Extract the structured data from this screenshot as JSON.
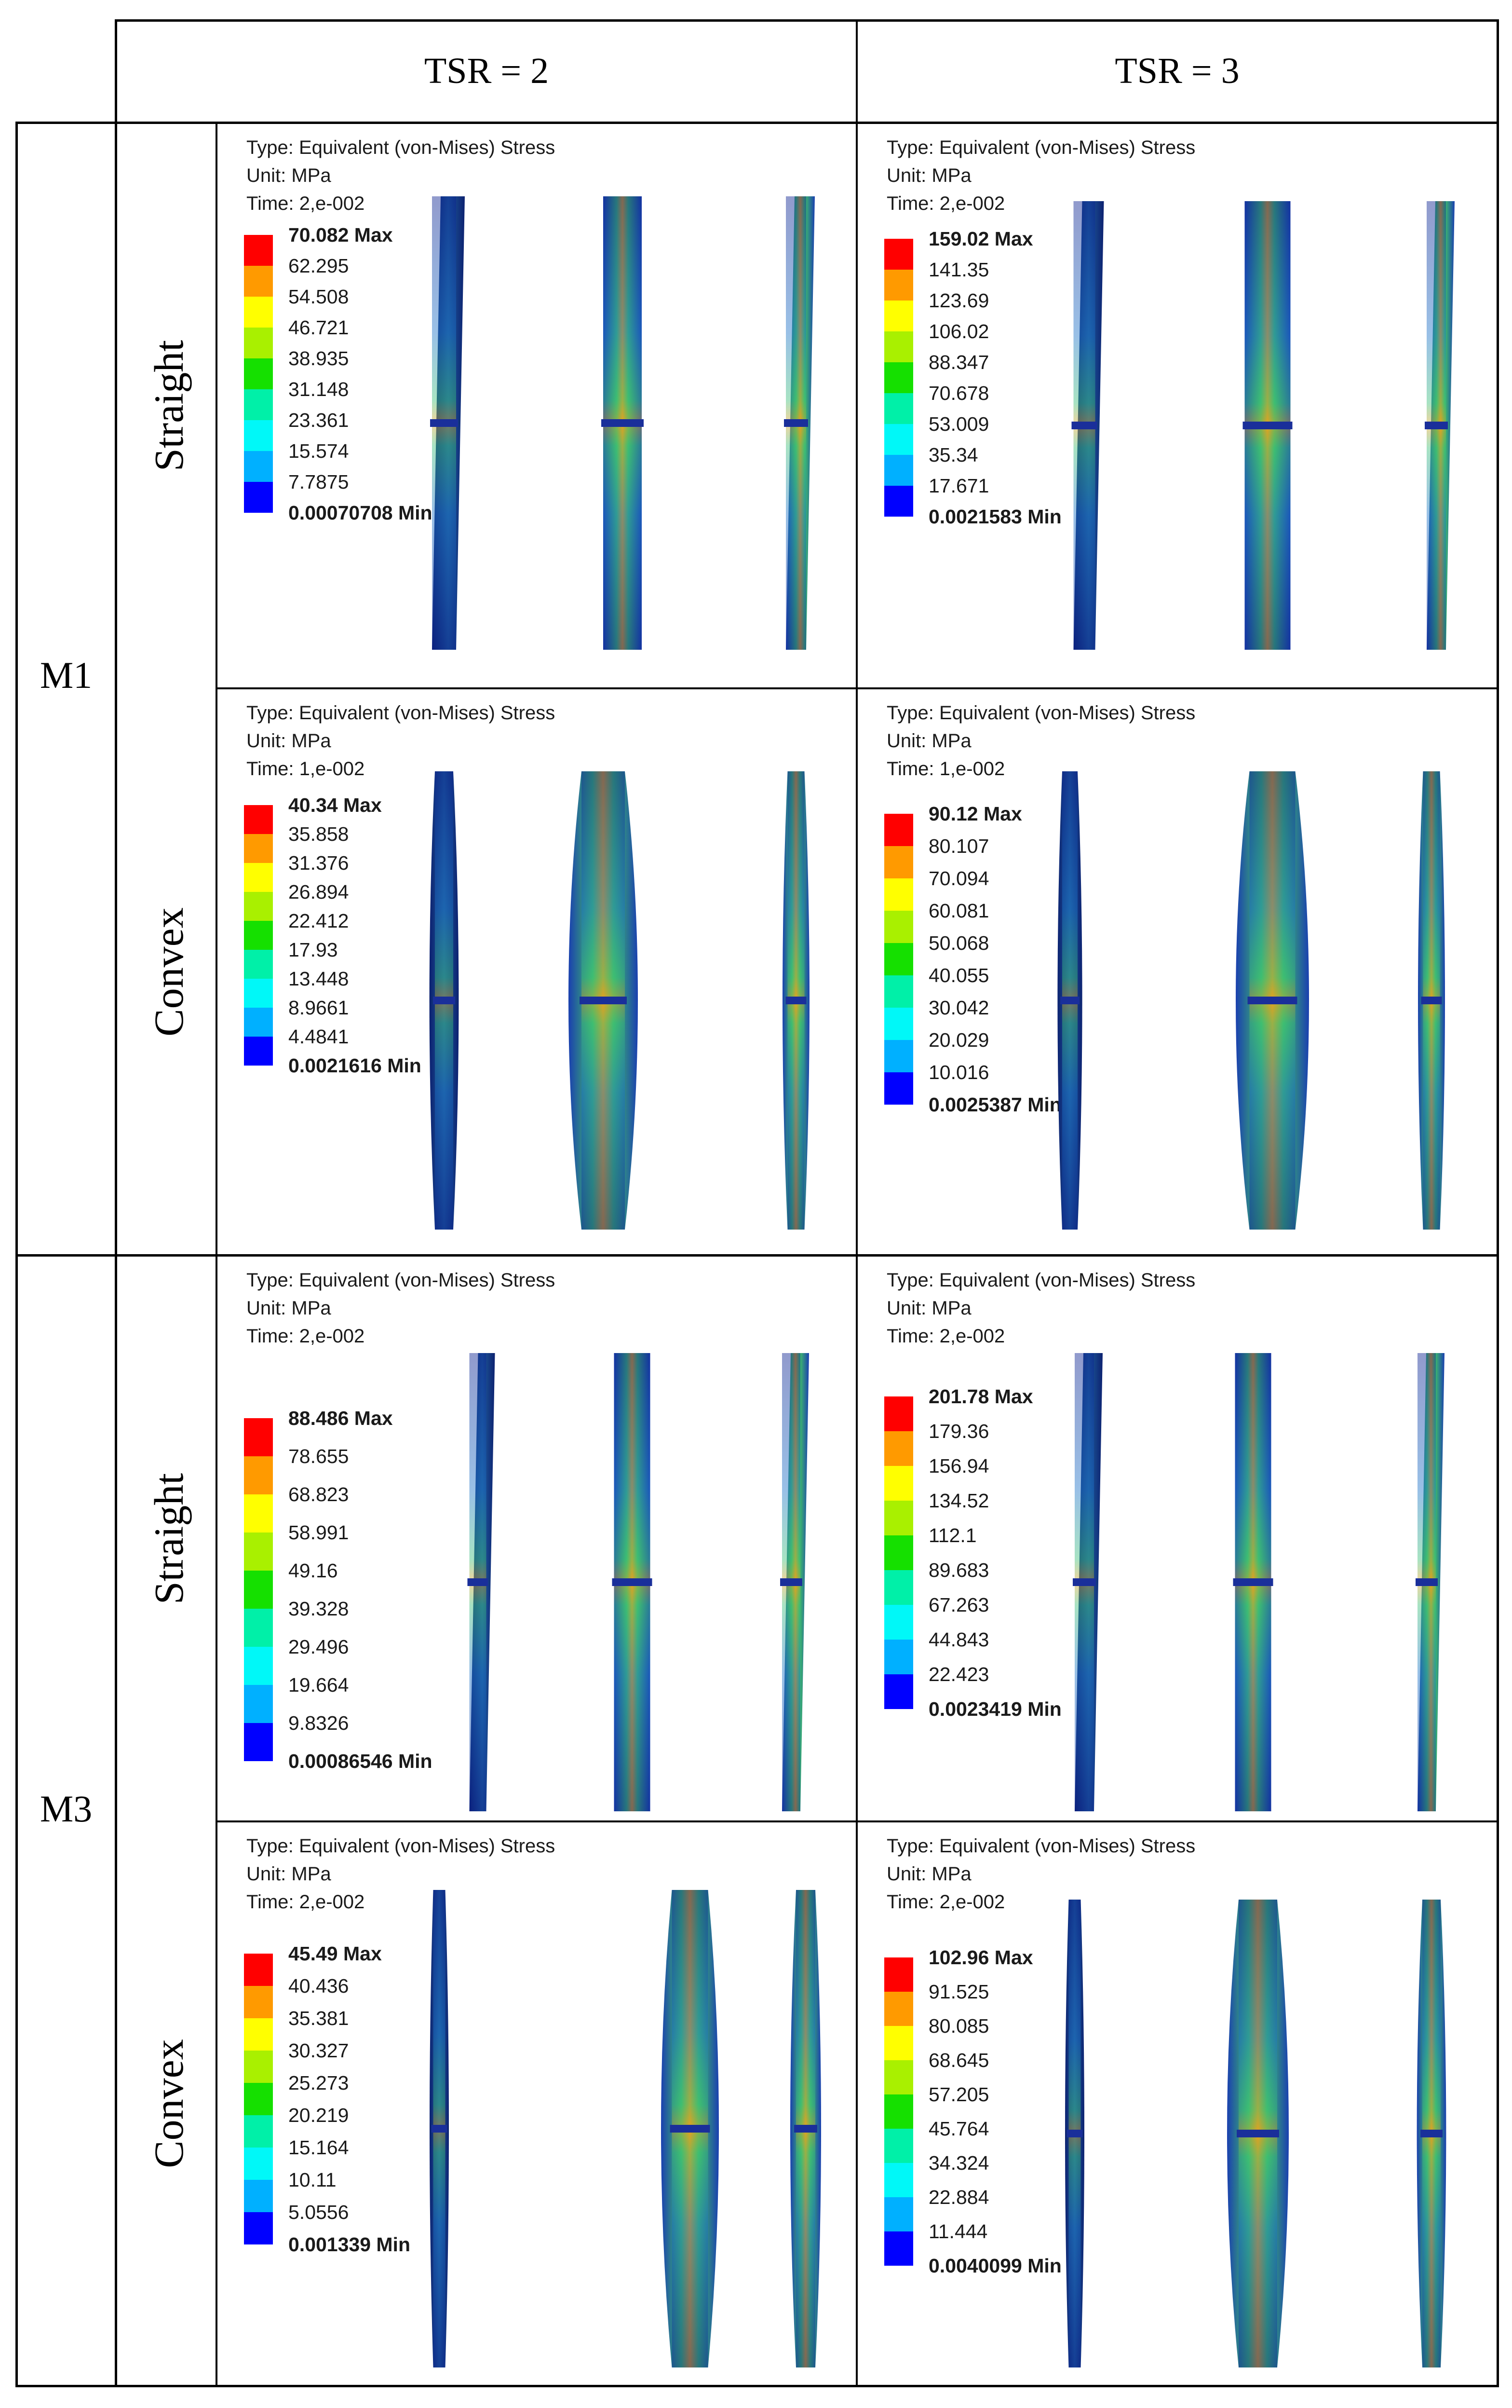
{
  "columns": {
    "tsr2": "TSR = 2",
    "tsr3": "TSR = 3"
  },
  "groups": {
    "m1": "M1",
    "m3": "M3"
  },
  "rows": {
    "straight": "Straight",
    "convex": "Convex"
  },
  "header": {
    "type": "Type: Equivalent (von-Mises) Stress",
    "unit": "Unit: MPa",
    "time_2e": "Time: 2,e-002",
    "time_1e": "Time: 1,e-002"
  },
  "legend_colors": [
    "#ff0000",
    "#ff9a00",
    "#ffff00",
    "#a9f000",
    "#15e000",
    "#00f0a8",
    "#00f8f8",
    "#00b0ff",
    "#0000ff"
  ],
  "panels": {
    "m1_straight_tsr2": [
      "70.082 Max",
      "62.295",
      "54.508",
      "46.721",
      "38.935",
      "31.148",
      "23.361",
      "15.574",
      "7.7875",
      "0.00070708 Min"
    ],
    "m1_straight_tsr3": [
      "159.02 Max",
      "141.35",
      "123.69",
      "106.02",
      "88.347",
      "70.678",
      "53.009",
      "35.34",
      "17.671",
      "0.0021583 Min"
    ],
    "m1_convex_tsr2": [
      "40.34 Max",
      "35.858",
      "31.376",
      "26.894",
      "22.412",
      "17.93",
      "13.448",
      "8.9661",
      "4.4841",
      "0.0021616 Min"
    ],
    "m1_convex_tsr3": [
      "90.12 Max",
      "80.107",
      "70.094",
      "60.081",
      "50.068",
      "40.055",
      "30.042",
      "20.029",
      "10.016",
      "0.0025387 Min"
    ],
    "m3_straight_tsr2": [
      "88.486 Max",
      "78.655",
      "68.823",
      "58.991",
      "49.16",
      "39.328",
      "29.496",
      "19.664",
      "9.8326",
      "0.00086546 Min"
    ],
    "m3_straight_tsr3": [
      "201.78 Max",
      "179.36",
      "156.94",
      "134.52",
      "112.1",
      "89.683",
      "67.263",
      "44.843",
      "22.423",
      "0.0023419 Min"
    ],
    "m3_convex_tsr2": [
      "45.49 Max",
      "40.436",
      "35.381",
      "30.327",
      "25.273",
      "20.219",
      "15.164",
      "10.11",
      "5.0556",
      "0.001339 Min"
    ],
    "m3_convex_tsr3": [
      "102.96 Max",
      "91.525",
      "80.085",
      "68.645",
      "57.205",
      "45.764",
      "34.324",
      "22.884",
      "11.444",
      "0.0040099 Min"
    ]
  }
}
